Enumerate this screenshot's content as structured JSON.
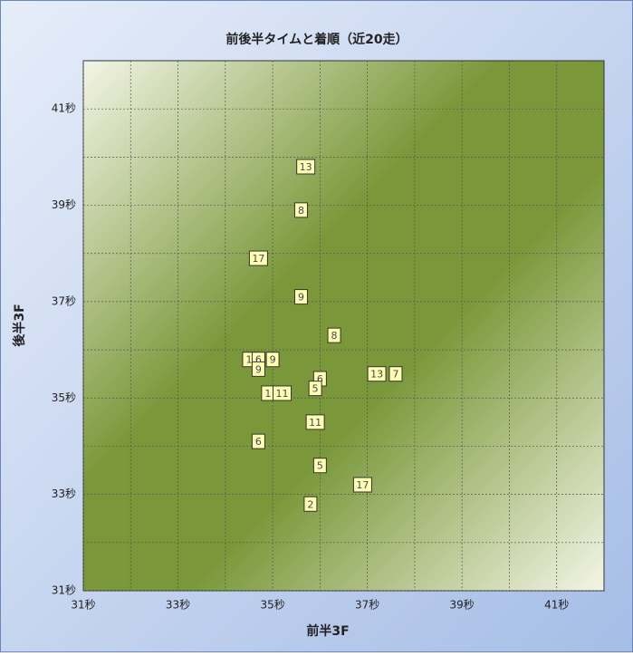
{
  "chart_data": {
    "type": "scatter",
    "title": "前後半タイムと着順（近20走）",
    "x_label": "前半3F",
    "y_label": "後半3F",
    "xlim": [
      31,
      42
    ],
    "ylim": [
      31,
      42
    ],
    "xticks": [
      {
        "value": 31,
        "label": "31秒"
      },
      {
        "value": 33,
        "label": "33秒"
      },
      {
        "value": 35,
        "label": "35秒"
      },
      {
        "value": 37,
        "label": "37秒"
      },
      {
        "value": 39,
        "label": "39秒"
      },
      {
        "value": 41,
        "label": "41秒"
      }
    ],
    "yticks": [
      {
        "value": 31,
        "label": "31秒"
      },
      {
        "value": 33,
        "label": "33秒"
      },
      {
        "value": 35,
        "label": "35秒"
      },
      {
        "value": 37,
        "label": "37秒"
      },
      {
        "value": 39,
        "label": "39秒"
      },
      {
        "value": 41,
        "label": "41秒"
      }
    ],
    "minor_xticks": [
      32,
      34,
      36,
      38,
      40
    ],
    "minor_yticks": [
      32,
      34,
      36,
      38,
      40
    ],
    "grid": true,
    "marker_color": "#ffffb0",
    "series": [
      {
        "name": "着順",
        "x": [
          35.7,
          35.6,
          34.7,
          35.6,
          36.3,
          34.5,
          34.7,
          35.0,
          34.7,
          37.2,
          37.6,
          36.0,
          35.9,
          34.9,
          35.2,
          35.9,
          34.7,
          36.0,
          36.9,
          35.8
        ],
        "y": [
          39.8,
          38.9,
          37.9,
          37.1,
          36.3,
          35.8,
          35.8,
          35.8,
          35.6,
          35.5,
          35.5,
          35.4,
          35.2,
          35.1,
          35.1,
          34.5,
          34.1,
          33.6,
          33.2,
          32.8
        ],
        "labels": [
          "13",
          "8",
          "17",
          "9",
          "8",
          "1",
          "6",
          "9",
          "9",
          "13",
          "7",
          "6",
          "5",
          "1",
          "11",
          "11",
          "6",
          "5",
          "17",
          "2"
        ]
      }
    ]
  }
}
